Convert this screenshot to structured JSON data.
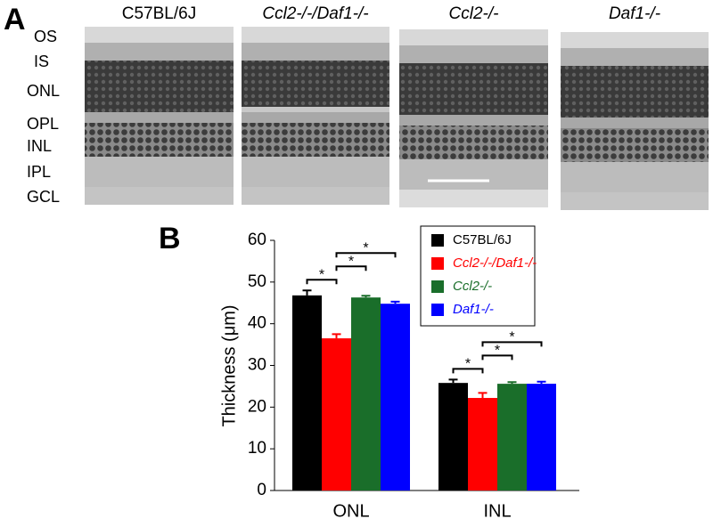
{
  "panel_a": {
    "label": "A",
    "columns": [
      "C57BL/6J",
      "Ccl2-/-/Daf1-/-",
      "Ccl2-/-",
      "Daf1-/-"
    ],
    "layers": [
      "OS",
      "IS",
      "ONL",
      "OPL",
      "INL",
      "IPL",
      "GCL"
    ]
  },
  "chart_data": {
    "type": "bar",
    "panel_label": "B",
    "ylabel": "Thickness (μm)",
    "categories": [
      "ONL",
      "INL"
    ],
    "series": [
      {
        "name": "C57BL/6J",
        "color": "#000000",
        "values": [
          46.8,
          25.8
        ],
        "errors": [
          1.2,
          0.8
        ]
      },
      {
        "name": "Ccl2-/-/Daf1-/-",
        "color": "#ff0000",
        "values": [
          36.5,
          22.2
        ],
        "errors": [
          1.0,
          1.2
        ]
      },
      {
        "name": "Ccl2-/-",
        "color": "#1a6e2a",
        "values": [
          46.3,
          25.6
        ],
        "errors": [
          0.4,
          0.4
        ]
      },
      {
        "name": "Daf1-/-",
        "color": "#0000ff",
        "values": [
          44.8,
          25.6
        ],
        "errors": [
          0.5,
          0.5
        ]
      }
    ],
    "comparisons": [
      {
        "category": 0,
        "from": 0,
        "to": 1,
        "label": "*"
      },
      {
        "category": 0,
        "from": 1,
        "to": 2,
        "label": "*"
      },
      {
        "category": 0,
        "from": 1,
        "to": 3,
        "label": "*"
      },
      {
        "category": 1,
        "from": 0,
        "to": 1,
        "label": "*"
      },
      {
        "category": 1,
        "from": 1,
        "to": 2,
        "label": "*"
      },
      {
        "category": 1,
        "from": 1,
        "to": 3,
        "label": "*"
      }
    ],
    "ylim": [
      0,
      60
    ],
    "yticks": [
      0,
      10,
      20,
      30,
      40,
      50,
      60
    ],
    "legend": "top-right"
  }
}
